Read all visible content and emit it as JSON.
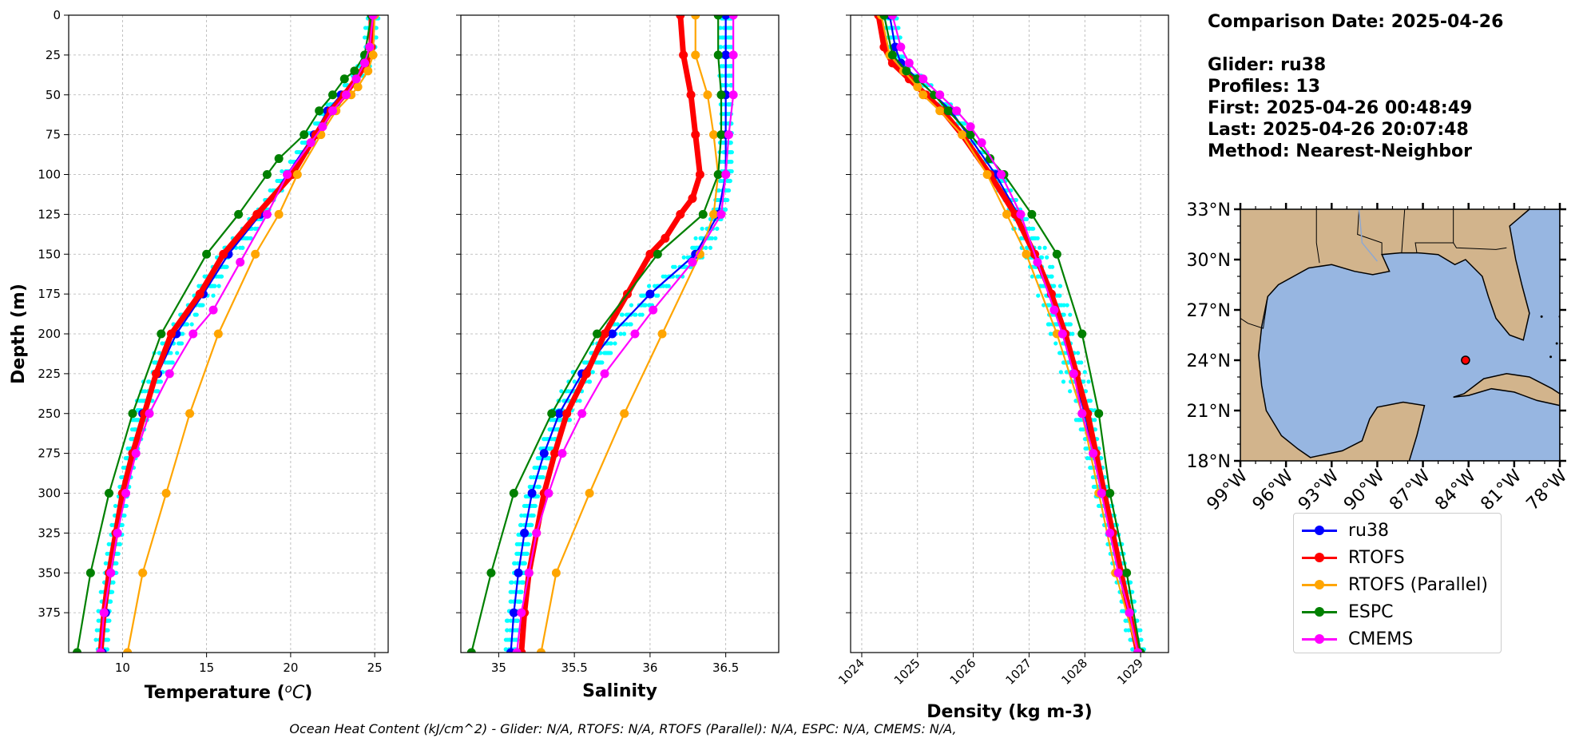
{
  "info": {
    "comparison_date": "Comparison Date: 2025-04-26",
    "glider": "Glider: ru38",
    "profiles": "Profiles: 13",
    "first": "First: 2025-04-26 00:48:49",
    "last": "Last: 2025-04-26 20:07:48",
    "method": "Method: Nearest-Neighbor"
  },
  "footer": "Ocean Heat Content (kJ/cm^2) - Glider: N/A,  RTOFS: N/A,  RTOFS (Parallel): N/A,  ESPC: N/A,  CMEMS: N/A,",
  "legend": [
    {
      "label": "ru38",
      "color": "#0000ff"
    },
    {
      "label": "RTOFS",
      "color": "#ff0000"
    },
    {
      "label": "RTOFS (Parallel)",
      "color": "#ffa500"
    },
    {
      "label": "ESPC",
      "color": "#008000"
    },
    {
      "label": "CMEMS",
      "color": "#ff00ff"
    }
  ],
  "colors": {
    "glider_profiles": "#00ffff",
    "ru38": "#0000ff",
    "RTOFS": "#ff0000",
    "RTOFS_parallel": "#ffa500",
    "ESPC": "#008000",
    "CMEMS": "#ff00ff",
    "ocean": "#97b6e1",
    "land": "#d2b48c",
    "glider_marker": "#ff0000"
  },
  "map": {
    "lat_ticks": [
      "33°N",
      "30°N",
      "27°N",
      "24°N",
      "21°N",
      "18°N"
    ],
    "lon_ticks": [
      "99°W",
      "96°W",
      "93°W",
      "90°W",
      "87°W",
      "84°W",
      "81°W",
      "78°W"
    ],
    "lat_range": [
      18,
      33
    ],
    "lon_range": [
      -99,
      -78
    ],
    "glider_location": {
      "lon": -84.2,
      "lat": 24.0
    }
  },
  "chart_data": [
    {
      "type": "line",
      "xlabel": "Temperature (°C)",
      "ylabel": "Depth (m)",
      "xlim": [
        6.8,
        25.8
      ],
      "ylim": [
        400,
        0
      ],
      "x_ticks": [
        10,
        15,
        20,
        25
      ],
      "y_ticks": [
        0,
        25,
        50,
        75,
        100,
        125,
        150,
        175,
        200,
        225,
        250,
        275,
        300,
        325,
        350,
        375
      ],
      "grid": true,
      "series": [
        {
          "name": "ru38",
          "depth": [
            0,
            20,
            30,
            40,
            50,
            60,
            75,
            100,
            125,
            150,
            175,
            200,
            225,
            250,
            275,
            300,
            325,
            350,
            375,
            400
          ],
          "values": [
            24.9,
            24.8,
            24.5,
            23.9,
            23.0,
            22.2,
            21.4,
            19.8,
            18.2,
            16.3,
            14.8,
            13.2,
            12.1,
            11.2,
            10.6,
            10.1,
            9.7,
            9.3,
            9.0,
            8.8
          ]
        },
        {
          "name": "RTOFS",
          "depth": [
            0,
            20,
            30,
            40,
            50,
            60,
            75,
            100,
            125,
            150,
            175,
            200,
            225,
            250,
            275,
            300,
            325,
            350,
            375,
            400
          ],
          "values": [
            24.8,
            24.8,
            24.5,
            23.9,
            23.2,
            22.4,
            21.5,
            20.1,
            18.0,
            16.0,
            14.6,
            12.9,
            12.0,
            11.3,
            10.6,
            10.0,
            9.6,
            9.2,
            8.9,
            8.7
          ]
        },
        {
          "name": "RTOFS (Parallel)",
          "depth": [
            0,
            25,
            35,
            45,
            50,
            60,
            75,
            100,
            125,
            150,
            200,
            250,
            300,
            350,
            400
          ],
          "values": [
            25.0,
            24.9,
            24.6,
            24.0,
            23.6,
            22.7,
            21.8,
            20.4,
            19.3,
            17.9,
            15.7,
            14.0,
            12.6,
            11.2,
            10.3
          ]
        },
        {
          "name": "ESPC",
          "depth": [
            0,
            25,
            35,
            40,
            50,
            60,
            75,
            90,
            100,
            125,
            150,
            200,
            250,
            300,
            350,
            400
          ],
          "values": [
            24.8,
            24.4,
            23.8,
            23.2,
            22.5,
            21.7,
            20.8,
            19.3,
            18.6,
            16.9,
            15.0,
            12.3,
            10.6,
            9.2,
            8.1,
            7.3
          ]
        },
        {
          "name": "CMEMS",
          "depth": [
            0,
            20,
            30,
            40,
            50,
            60,
            70,
            80,
            100,
            125,
            155,
            185,
            200,
            225,
            250,
            275,
            300,
            325,
            350,
            375,
            400
          ],
          "values": [
            24.9,
            24.7,
            24.4,
            23.9,
            23.3,
            22.5,
            21.9,
            21.2,
            19.8,
            18.6,
            17.0,
            15.4,
            14.2,
            12.8,
            11.6,
            10.8,
            10.2,
            9.7,
            9.3,
            8.9,
            8.7
          ]
        }
      ]
    },
    {
      "type": "line",
      "xlabel": "Salinity",
      "ylabel": "",
      "xlim": [
        34.75,
        36.85
      ],
      "ylim": [
        400,
        0
      ],
      "x_ticks": [
        35.0,
        35.5,
        36.0,
        36.5
      ],
      "grid": true,
      "series": [
        {
          "name": "ru38",
          "depth": [
            0,
            25,
            50,
            75,
            100,
            125,
            150,
            175,
            200,
            225,
            250,
            275,
            300,
            325,
            350,
            375,
            400
          ],
          "values": [
            36.5,
            36.5,
            36.5,
            36.5,
            36.5,
            36.45,
            36.3,
            36.0,
            35.75,
            35.55,
            35.4,
            35.3,
            35.22,
            35.17,
            35.13,
            35.1,
            35.08
          ]
        },
        {
          "name": "RTOFS",
          "depth": [
            0,
            25,
            50,
            75,
            100,
            115,
            125,
            140,
            150,
            175,
            200,
            225,
            250,
            275,
            300,
            325,
            350,
            375,
            400
          ],
          "values": [
            36.2,
            36.22,
            36.27,
            36.3,
            36.33,
            36.28,
            36.2,
            36.1,
            36.0,
            35.85,
            35.7,
            35.58,
            35.45,
            35.37,
            35.3,
            35.25,
            35.2,
            35.17,
            35.15
          ]
        },
        {
          "name": "RTOFS (Parallel)",
          "depth": [
            0,
            25,
            50,
            75,
            100,
            125,
            150,
            200,
            250,
            300,
            350,
            400
          ],
          "values": [
            36.3,
            36.3,
            36.38,
            36.42,
            36.45,
            36.42,
            36.33,
            36.08,
            35.83,
            35.6,
            35.38,
            35.28
          ]
        },
        {
          "name": "ESPC",
          "depth": [
            0,
            25,
            50,
            75,
            100,
            125,
            150,
            200,
            250,
            300,
            350,
            400
          ],
          "values": [
            36.45,
            36.45,
            36.47,
            36.47,
            36.45,
            36.35,
            36.05,
            35.65,
            35.35,
            35.1,
            34.95,
            34.82
          ]
        },
        {
          "name": "CMEMS",
          "depth": [
            0,
            25,
            50,
            75,
            100,
            125,
            155,
            185,
            200,
            225,
            250,
            275,
            300,
            325,
            350,
            375,
            400
          ],
          "values": [
            36.55,
            36.55,
            36.55,
            36.52,
            36.5,
            36.47,
            36.28,
            36.02,
            35.9,
            35.7,
            35.55,
            35.42,
            35.33,
            35.25,
            35.2,
            35.15,
            35.12
          ]
        }
      ]
    },
    {
      "type": "line",
      "xlabel": "Density (kg m-3)",
      "ylabel": "",
      "xlim": [
        1023.8,
        1029.5
      ],
      "ylim": [
        400,
        0
      ],
      "x_ticks": [
        1024,
        1025,
        1026,
        1027,
        1028,
        1029
      ],
      "grid": true,
      "series": [
        {
          "name": "ru38",
          "depth": [
            0,
            20,
            30,
            40,
            50,
            60,
            75,
            100,
            125,
            150,
            175,
            200,
            225,
            250,
            275,
            300,
            325,
            350,
            375,
            400
          ],
          "values": [
            1024.5,
            1024.6,
            1024.7,
            1025.0,
            1025.3,
            1025.6,
            1025.9,
            1026.4,
            1026.8,
            1027.1,
            1027.4,
            1027.6,
            1027.8,
            1028.0,
            1028.15,
            1028.3,
            1028.5,
            1028.65,
            1028.8,
            1028.95
          ]
        },
        {
          "name": "RTOFS",
          "depth": [
            0,
            20,
            30,
            40,
            50,
            60,
            75,
            100,
            125,
            150,
            175,
            200,
            225,
            250,
            275,
            300,
            325,
            350,
            375,
            400
          ],
          "values": [
            1024.3,
            1024.4,
            1024.55,
            1024.85,
            1025.15,
            1025.45,
            1025.8,
            1026.3,
            1026.75,
            1027.1,
            1027.4,
            1027.65,
            1027.85,
            1028.05,
            1028.2,
            1028.35,
            1028.5,
            1028.65,
            1028.8,
            1028.95
          ]
        },
        {
          "name": "RTOFS (Parallel)",
          "depth": [
            0,
            25,
            35,
            45,
            50,
            60,
            75,
            100,
            125,
            150,
            200,
            250,
            300,
            350,
            400
          ],
          "values": [
            1024.35,
            1024.5,
            1024.75,
            1025.0,
            1025.1,
            1025.4,
            1025.8,
            1026.25,
            1026.6,
            1026.95,
            1027.5,
            1027.95,
            1028.25,
            1028.55,
            1028.95
          ]
        },
        {
          "name": "ESPC",
          "depth": [
            0,
            25,
            35,
            40,
            50,
            60,
            75,
            90,
            100,
            125,
            150,
            200,
            250,
            300,
            350,
            400
          ],
          "values": [
            1024.4,
            1024.55,
            1024.8,
            1025.0,
            1025.3,
            1025.55,
            1025.95,
            1026.3,
            1026.55,
            1027.05,
            1027.5,
            1027.95,
            1028.25,
            1028.45,
            1028.75,
            1029.0
          ]
        },
        {
          "name": "CMEMS",
          "depth": [
            0,
            20,
            30,
            40,
            50,
            60,
            70,
            80,
            100,
            125,
            155,
            185,
            200,
            225,
            250,
            275,
            300,
            325,
            350,
            375,
            400
          ],
          "values": [
            1024.55,
            1024.7,
            1024.85,
            1025.1,
            1025.4,
            1025.7,
            1025.95,
            1026.15,
            1026.5,
            1026.85,
            1027.15,
            1027.45,
            1027.6,
            1027.8,
            1027.95,
            1028.15,
            1028.3,
            1028.45,
            1028.6,
            1028.8,
            1028.95
          ]
        }
      ]
    }
  ]
}
